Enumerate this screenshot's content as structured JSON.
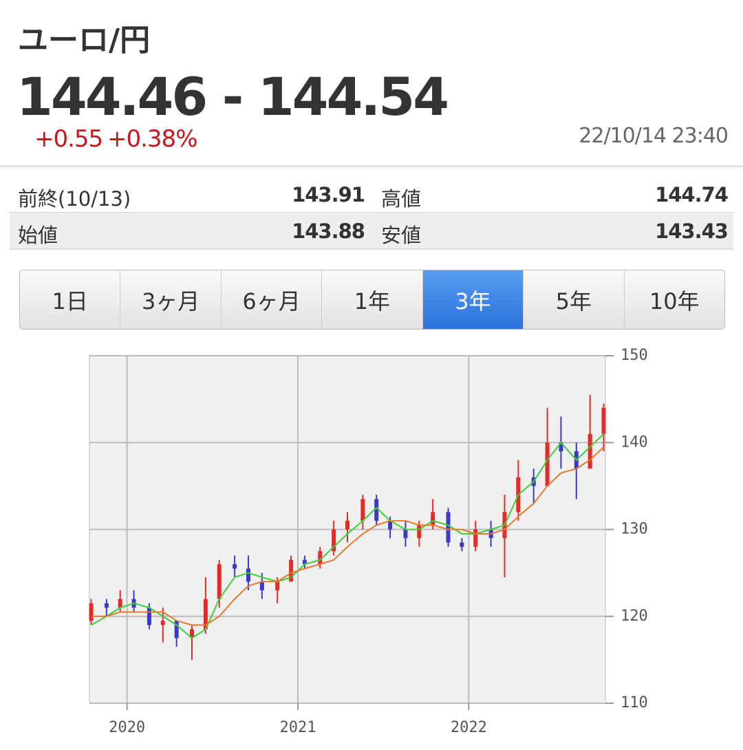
{
  "header": {
    "title": "ユーロ/円",
    "quote": "144.46 - 144.54",
    "change": "+0.55",
    "change_pct": "+0.38%",
    "timestamp": "22/10/14 23:40"
  },
  "stats": [
    [
      {
        "label": "前終(10/13)",
        "value": "143.91"
      },
      {
        "label": "高値",
        "value": "144.74"
      }
    ],
    [
      {
        "label": "始値",
        "value": "143.88"
      },
      {
        "label": "安値",
        "value": "143.43"
      }
    ]
  ],
  "tabs": {
    "items": [
      "1日",
      "3ヶ月",
      "6ヶ月",
      "1年",
      "3年",
      "5年",
      "10年"
    ],
    "active": 4
  },
  "chart_data": {
    "type": "candlestick",
    "x": [
      2019.79,
      2019.88,
      2019.96,
      2020.04,
      2020.13,
      2020.21,
      2020.29,
      2020.38,
      2020.46,
      2020.54,
      2020.63,
      2020.71,
      2020.79,
      2020.88,
      2020.96,
      2021.04,
      2021.13,
      2021.21,
      2021.29,
      2021.38,
      2021.46,
      2021.54,
      2021.63,
      2021.71,
      2021.79,
      2021.88,
      2021.96,
      2022.04,
      2022.13,
      2022.21,
      2022.29,
      2022.38,
      2022.46,
      2022.54,
      2022.63,
      2022.71,
      2022.79
    ],
    "open": [
      119.5,
      121.5,
      121,
      122,
      121,
      119,
      119.5,
      117.5,
      118.5,
      122,
      126,
      125.5,
      124,
      123,
      124,
      126.5,
      126,
      127.5,
      130,
      131,
      133.5,
      131,
      130,
      129,
      130.5,
      132,
      128.5,
      128,
      130,
      129,
      132,
      136,
      135,
      140,
      139,
      137,
      141
    ],
    "high": [
      122,
      122,
      123,
      123,
      121.5,
      121,
      119.5,
      119,
      124.5,
      126.5,
      127,
      127,
      125,
      124.5,
      127,
      127,
      128,
      131,
      132,
      134,
      134,
      131.5,
      131,
      131,
      133.5,
      132.5,
      129,
      131,
      131,
      134,
      138,
      137,
      144,
      143,
      140,
      145.5,
      144.5
    ],
    "low": [
      119,
      120,
      120.5,
      120.5,
      118.5,
      117,
      116.5,
      115,
      118,
      121,
      124.5,
      123,
      122,
      121.5,
      124,
      125.5,
      125.5,
      127,
      128.5,
      130,
      130.5,
      129,
      128,
      128,
      130,
      128,
      127.5,
      127.5,
      128,
      124.5,
      131,
      133,
      135,
      137,
      133.5,
      137,
      139
    ],
    "close": [
      121.5,
      121,
      122,
      121,
      119,
      119.5,
      117.5,
      118.5,
      122,
      126,
      125.5,
      124,
      123,
      124,
      126.5,
      126,
      127.5,
      130,
      131,
      133.5,
      131,
      130,
      129,
      130.5,
      132,
      128.5,
      128,
      130,
      129,
      132,
      136,
      135,
      140,
      139,
      137,
      141,
      144
    ],
    "up_color": "#e62a2a",
    "down_color": "#3a3ac4",
    "overlays": [
      {
        "color": "#3ad03a",
        "values": [
          119,
          120,
          121,
          121.5,
          121,
          120,
          119,
          117.5,
          118.5,
          122,
          124.5,
          125,
          124.5,
          124,
          124.5,
          126,
          126.5,
          128,
          129.5,
          131,
          132.5,
          131,
          130,
          130,
          131,
          130.5,
          129.5,
          129.5,
          130,
          130.5,
          134,
          135.5,
          138,
          140,
          138,
          139.5,
          141
        ]
      },
      {
        "color": "#e8782a",
        "values": [
          120,
          120,
          120.5,
          120.5,
          120.5,
          120.5,
          119.5,
          119,
          119,
          120,
          122,
          123.5,
          124,
          124,
          125,
          125.5,
          126,
          126.5,
          128,
          129.5,
          130.5,
          131,
          131,
          130.5,
          130.5,
          130,
          130,
          129.5,
          129.5,
          130,
          131.5,
          133,
          135,
          136.5,
          137,
          138,
          139.5
        ]
      }
    ],
    "xlim": [
      2019.78,
      2022.8
    ],
    "xticks": [
      2020,
      2021,
      2022
    ],
    "ylim": [
      110,
      150
    ],
    "yticks": [
      110,
      120,
      130,
      140,
      150
    ],
    "grid": true
  }
}
